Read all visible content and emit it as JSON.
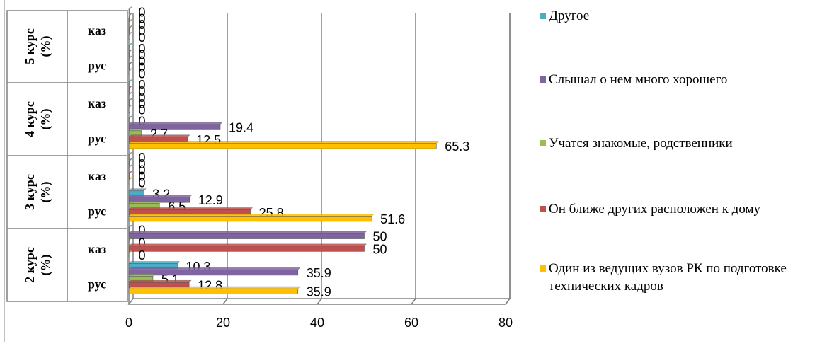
{
  "chart_data": {
    "type": "bar",
    "orientation": "horizontal",
    "groups": [
      {
        "label": "2 курс (%)",
        "categories": [
          "рус",
          "каз"
        ]
      },
      {
        "label": "3 курс (%)",
        "categories": [
          "рус",
          "каз"
        ]
      },
      {
        "label": "4 курс (%)",
        "categories": [
          "рус",
          "каз"
        ]
      },
      {
        "label": "5 курс (%)",
        "categories": [
          "рус",
          "каз"
        ]
      }
    ],
    "series": [
      {
        "name": "Один из ведущих  вузов РК по подготовке технических кадров",
        "color": "#FFC000",
        "values": [
          35.9,
          0,
          51.6,
          0,
          65.3,
          0,
          0,
          0
        ]
      },
      {
        "name": "Он ближе других расположен к дому",
        "color": "#C0504D",
        "values": [
          12.8,
          50,
          25.8,
          0,
          12.5,
          0,
          0,
          0
        ]
      },
      {
        "name": "Учатся знакомые, родственники",
        "color": "#9BBB59",
        "values": [
          5.1,
          0,
          6.5,
          0,
          2.7,
          0,
          0,
          0
        ]
      },
      {
        "name": "Слышал о нем много хорошего",
        "color": "#8064A2",
        "values": [
          35.9,
          50,
          12.9,
          0,
          19.4,
          0,
          0,
          0
        ]
      },
      {
        "name": "Другое",
        "color": "#4BACC6",
        "values": [
          10.3,
          0,
          3.2,
          0,
          0,
          0,
          0,
          0
        ]
      }
    ],
    "xlim": [
      0,
      80
    ],
    "xticks": [
      "0",
      "20",
      "40",
      "60",
      "80"
    ],
    "grid": true,
    "legend_position": "right",
    "data_labels": true
  }
}
